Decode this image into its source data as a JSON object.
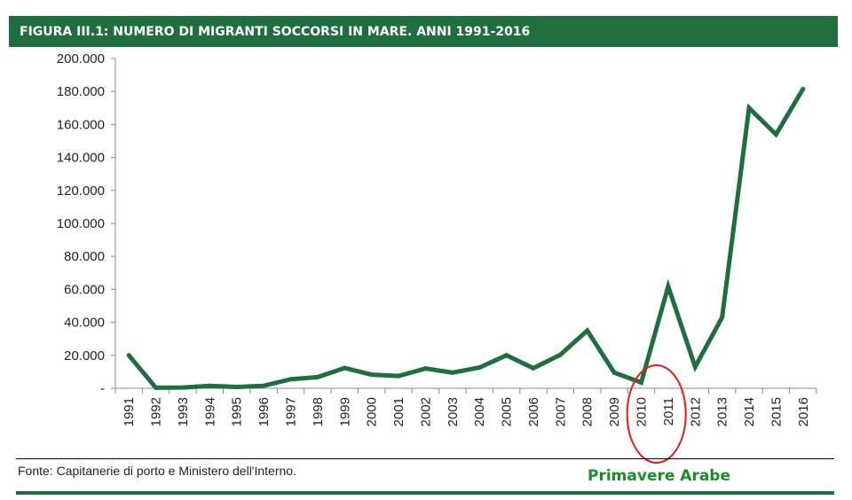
{
  "chart_data": {
    "type": "line",
    "title": "FIGURA III.1: NUMERO DI MIGRANTI SOCCORSI IN MARE. ANNI 1991-2016",
    "xlabel": "",
    "ylabel": "",
    "ylim": [
      0,
      200000
    ],
    "y_ticks": [
      "-",
      "20.000",
      "40.000",
      "60.000",
      "80.000",
      "100.000",
      "120.000",
      "140.000",
      "160.000",
      "180.000",
      "200.000"
    ],
    "grid": false,
    "categories": [
      "1991",
      "1992",
      "1993",
      "1994",
      "1995",
      "1996",
      "1997",
      "1998",
      "1999",
      "2000",
      "2001",
      "2002",
      "2003",
      "2004",
      "2005",
      "2006",
      "2007",
      "2008",
      "2009",
      "2010",
      "2011",
      "2012",
      "2013",
      "2014",
      "2015",
      "2016"
    ],
    "series": [
      {
        "values": [
          20000,
          300,
          500,
          1500,
          800,
          1500,
          5500,
          6800,
          12300,
          8300,
          7500,
          12000,
          9500,
          12600,
          20000,
          12200,
          20300,
          35000,
          9500,
          3500,
          61800,
          13000,
          43000,
          170000,
          154000,
          181500
        ],
        "color": "#1e6e3e"
      }
    ],
    "annotation": {
      "text": "Primavere Arabe",
      "color": "#1d8a2c",
      "highlight_color": "#e31b1b",
      "highlight_categories": [
        "2010",
        "2011"
      ]
    },
    "source": "Fonte: Capitanerie di porto e Ministero dell'Interno."
  }
}
